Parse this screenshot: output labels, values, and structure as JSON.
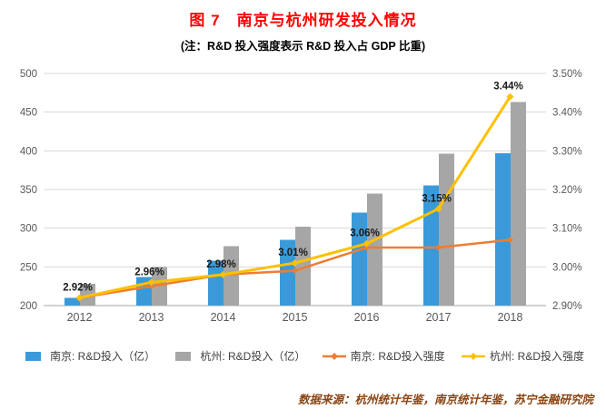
{
  "page": {
    "title": "图 7　南京与杭州研发投入情况",
    "subtitle": "(注：R&D 投入强度表示 R&D 投入占 GDP 比重)",
    "footer": "数据来源：杭州统计年鉴，南京统计年鉴，苏宁金融研究院"
  },
  "colors": {
    "title": "#FF0000",
    "footer": "#8B4513",
    "axis_text": "#595959",
    "grid_line": "#D9D9D9",
    "axis_line": "#A6A6A6",
    "data_label": "#1A1A1A",
    "nanjing_bar": "#3A9AD9",
    "hangzhou_bar": "#A6A6A6",
    "nanjing_line": "#ED7D31",
    "hangzhou_line": "#FFC000"
  },
  "chart_data": {
    "type": "combo-bar-line",
    "categories": [
      "2012",
      "2013",
      "2014",
      "2015",
      "2016",
      "2017",
      "2018"
    ],
    "bar_series": [
      {
        "name": "南京: R&D投入（亿）",
        "color_key": "nanjing_bar",
        "axis": "left",
        "values": [
          210,
          237,
          258,
          285,
          320,
          355,
          397
        ]
      },
      {
        "name": "杭州: R&D投入（亿）",
        "color_key": "hangzhou_bar",
        "axis": "left",
        "values": [
          228,
          250,
          277,
          302,
          345,
          396,
          463
        ]
      }
    ],
    "line_series": [
      {
        "name": "南京: R&D投入强度",
        "color_key": "nanjing_line",
        "axis": "right",
        "values": [
          2.92,
          2.95,
          2.98,
          2.99,
          3.05,
          3.05,
          3.07
        ],
        "labels": null
      },
      {
        "name": "杭州: R&D投入强度",
        "color_key": "hangzhou_line",
        "axis": "right",
        "values": [
          2.92,
          2.96,
          2.98,
          3.01,
          3.06,
          3.15,
          3.44
        ],
        "labels": [
          "2.92%",
          "2.96%",
          "2.98%",
          "3.01%",
          "3.06%",
          "3.15%",
          "3.44%"
        ]
      }
    ],
    "left_axis": {
      "min": 200,
      "max": 500,
      "step": 50,
      "ticks": [
        "200",
        "250",
        "300",
        "350",
        "400",
        "450",
        "500"
      ]
    },
    "right_axis": {
      "min": 2.9,
      "max": 3.5,
      "step": 0.1,
      "ticks": [
        "2.90%",
        "3.00%",
        "3.10%",
        "3.20%",
        "3.30%",
        "3.40%",
        "3.50%"
      ]
    },
    "grid": true,
    "legend_position": "bottom"
  }
}
